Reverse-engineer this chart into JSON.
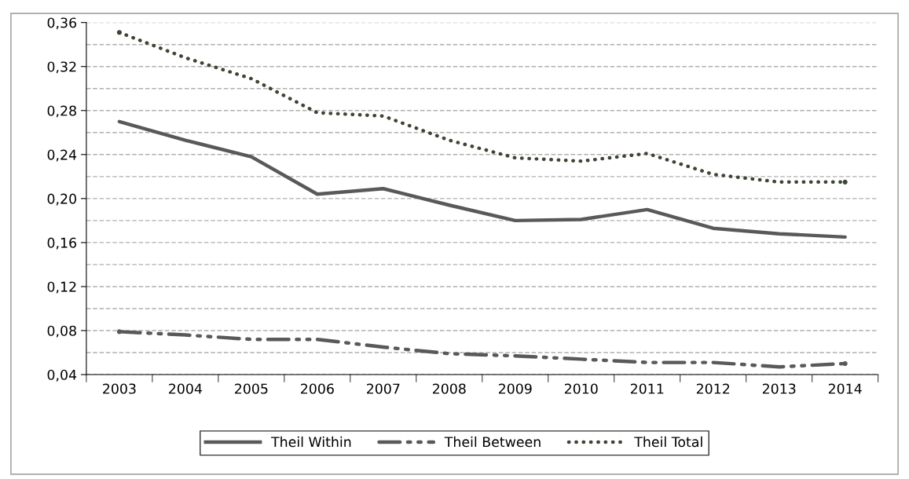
{
  "chart_data": {
    "type": "line",
    "categories": [
      "2003",
      "2004",
      "2005",
      "2006",
      "2007",
      "2008",
      "2009",
      "2010",
      "2011",
      "2012",
      "2013",
      "2014"
    ],
    "series": [
      {
        "name": "Theil Within",
        "color": "#595959",
        "line_style": "solid",
        "values": [
          0.27,
          0.253,
          0.238,
          0.204,
          0.209,
          0.194,
          0.18,
          0.181,
          0.19,
          0.173,
          0.168,
          0.165
        ]
      },
      {
        "name": "Theil Between",
        "color": "#595959",
        "line_style": "dashed",
        "values": [
          0.079,
          0.076,
          0.072,
          0.072,
          0.065,
          0.059,
          0.057,
          0.054,
          0.051,
          0.051,
          0.047,
          0.05
        ]
      },
      {
        "name": "Theil Total",
        "color": "#3c4634",
        "line_style": "dotted",
        "values": [
          0.351,
          0.328,
          0.309,
          0.278,
          0.275,
          0.253,
          0.237,
          0.234,
          0.241,
          0.222,
          0.215,
          0.215
        ]
      }
    ],
    "ylim": [
      0.04,
      0.36
    ],
    "yticks": [
      {
        "value": 0.04,
        "label": "0,04"
      },
      {
        "value": 0.06,
        "label": null
      },
      {
        "value": 0.08,
        "label": "0,08"
      },
      {
        "value": 0.1,
        "label": null
      },
      {
        "value": 0.12,
        "label": "0,12"
      },
      {
        "value": 0.14,
        "label": null
      },
      {
        "value": 0.16,
        "label": "0,16"
      },
      {
        "value": 0.18,
        "label": null
      },
      {
        "value": 0.2,
        "label": "0,20"
      },
      {
        "value": 0.22,
        "label": null
      },
      {
        "value": 0.24,
        "label": "0,24"
      },
      {
        "value": 0.26,
        "label": null
      },
      {
        "value": 0.28,
        "label": "0,28"
      },
      {
        "value": 0.3,
        "label": null
      },
      {
        "value": 0.32,
        "label": "0,32"
      },
      {
        "value": 0.34,
        "label": null
      },
      {
        "value": 0.36,
        "label": "0,36"
      }
    ],
    "grid": "y",
    "legend": "bottom",
    "marker": "none"
  }
}
